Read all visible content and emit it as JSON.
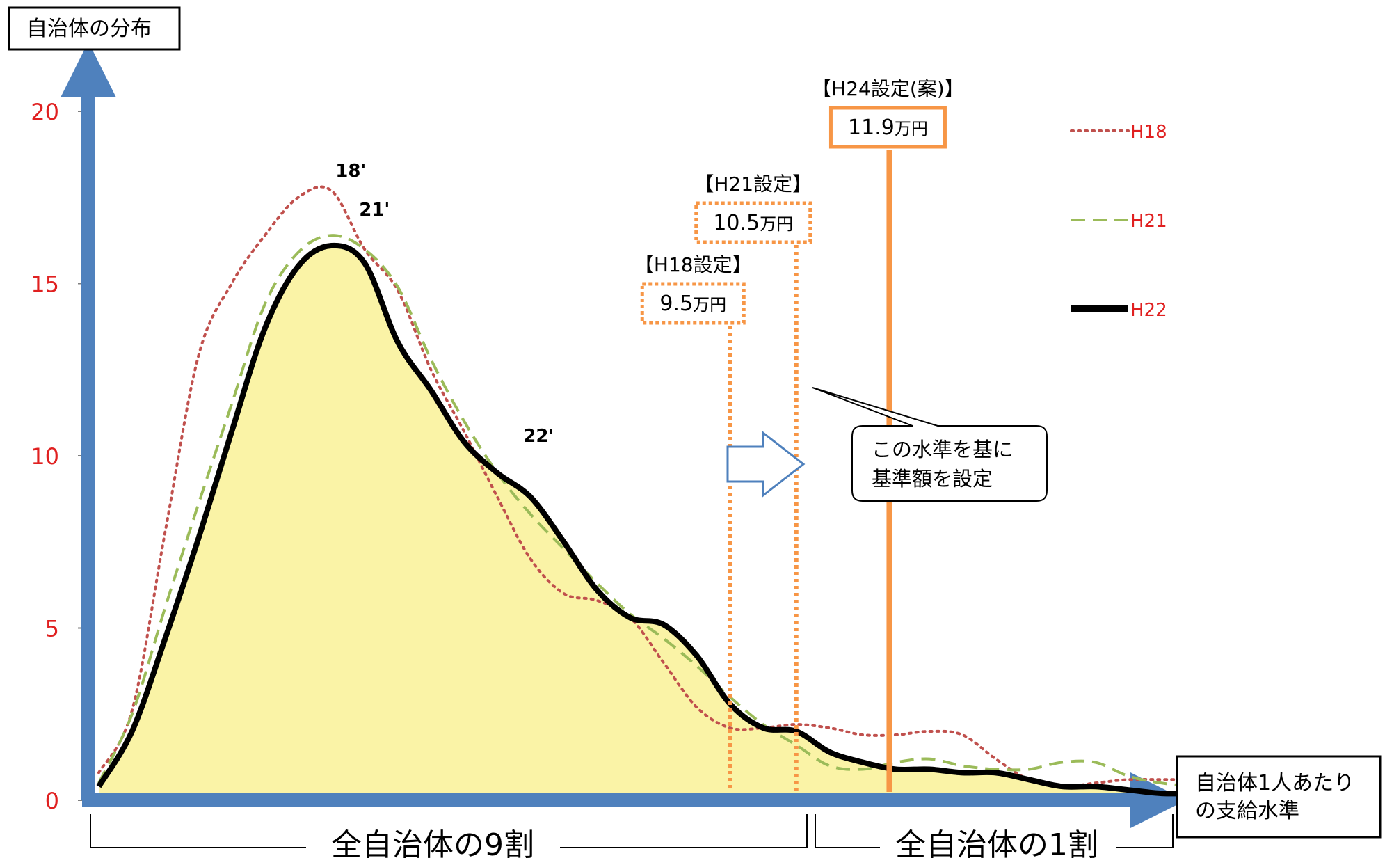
{
  "chart_data": {
    "type": "line",
    "ylabel": "自治体の分布",
    "xlabel_line1": "自治体1人あたり",
    "xlabel_line2": "の支給水準",
    "ylim": [
      0,
      20
    ],
    "yticks": [
      "0",
      "5",
      "10",
      "15",
      "20"
    ],
    "series": [
      {
        "name": "H18",
        "peak_label": "18'",
        "style": "dotted",
        "color": "#c0504d",
        "x": [
          0.0,
          0.5,
          1.0,
          1.5,
          2.0,
          2.5,
          3.0,
          3.5,
          4.0,
          4.5,
          5.0,
          5.5,
          6.0,
          6.5,
          7.0,
          7.5,
          8.0,
          8.5,
          9.0,
          9.5,
          10.0,
          10.5,
          11.0,
          11.5,
          12.0,
          12.5,
          13.0,
          13.5,
          14.0,
          14.5,
          15.0,
          15.5,
          16.0,
          16.5,
          17.0
        ],
        "values": [
          0.8,
          2.6,
          7.8,
          12.9,
          15.0,
          16.4,
          17.5,
          17.7,
          16.0,
          14.8,
          12.5,
          10.7,
          8.8,
          7.0,
          6.0,
          5.8,
          5.3,
          4.0,
          2.7,
          2.1,
          2.1,
          2.2,
          2.1,
          1.9,
          1.9,
          2.0,
          1.9,
          1.2,
          0.6,
          0.4,
          0.5,
          0.6,
          0.6,
          0.6,
          0.6
        ]
      },
      {
        "name": "H21",
        "peak_label": "21'",
        "style": "dashed",
        "color": "#9bbb59",
        "x": [
          0.0,
          0.5,
          1.0,
          1.5,
          2.0,
          2.5,
          3.0,
          3.5,
          4.0,
          4.5,
          5.0,
          5.5,
          6.0,
          6.5,
          7.0,
          7.5,
          8.0,
          8.5,
          9.0,
          9.5,
          10.0,
          10.5,
          11.0,
          11.5,
          12.0,
          12.5,
          13.0,
          13.5,
          14.0,
          14.5,
          15.0,
          15.5,
          16.0,
          16.5,
          17.0
        ],
        "values": [
          0.5,
          2.5,
          5.6,
          8.6,
          11.5,
          14.4,
          15.9,
          16.4,
          16.0,
          14.9,
          12.8,
          11.0,
          9.5,
          8.3,
          7.3,
          6.3,
          5.4,
          4.7,
          3.9,
          3.0,
          2.2,
          1.6,
          1.0,
          0.9,
          1.1,
          1.2,
          1.0,
          0.9,
          0.9,
          1.1,
          1.1,
          0.7,
          0.5,
          0.4,
          0.4
        ]
      },
      {
        "name": "H22",
        "peak_label": "22'",
        "style": "solid",
        "color": "#000000",
        "x": [
          0.0,
          0.5,
          1.0,
          1.5,
          2.0,
          2.5,
          3.0,
          3.5,
          4.0,
          4.5,
          5.0,
          5.5,
          6.0,
          6.5,
          7.0,
          7.5,
          8.0,
          8.5,
          9.0,
          9.5,
          10.0,
          10.5,
          11.0,
          11.5,
          12.0,
          12.5,
          13.0,
          13.5,
          14.0,
          14.5,
          15.0,
          15.5,
          16.0,
          16.5,
          17.0
        ],
        "values": [
          0.4,
          2.0,
          4.7,
          7.6,
          10.7,
          13.7,
          15.5,
          16.1,
          15.6,
          13.3,
          11.9,
          10.4,
          9.5,
          8.8,
          7.5,
          6.1,
          5.3,
          5.1,
          4.2,
          2.8,
          2.1,
          2.0,
          1.4,
          1.1,
          0.9,
          0.9,
          0.8,
          0.8,
          0.6,
          0.4,
          0.4,
          0.3,
          0.2,
          0.2,
          0.2
        ]
      }
    ],
    "settings": [
      {
        "title": "【H18設定】",
        "amount": "9.5",
        "unit": "万円",
        "x": 9.5,
        "style": "dotted",
        "color": "#f79646"
      },
      {
        "title": "【H21設定】",
        "amount": "10.5",
        "unit": "万円",
        "x": 10.5,
        "style": "dotted",
        "color": "#f79646"
      },
      {
        "title": "【H24設定(案)】",
        "amount": "11.9",
        "unit": "万円",
        "x": 11.9,
        "style": "solid",
        "color": "#f79646"
      }
    ],
    "callout": [
      "この水準を基に",
      "基準額を設定"
    ],
    "bracket_left": "全自治体の9割",
    "bracket_right": "全自治体の1割",
    "legend_position": "top-right",
    "fill_color": "#faf3a6",
    "axis_color": "#4f81bd",
    "tick_color": "#e02020"
  }
}
